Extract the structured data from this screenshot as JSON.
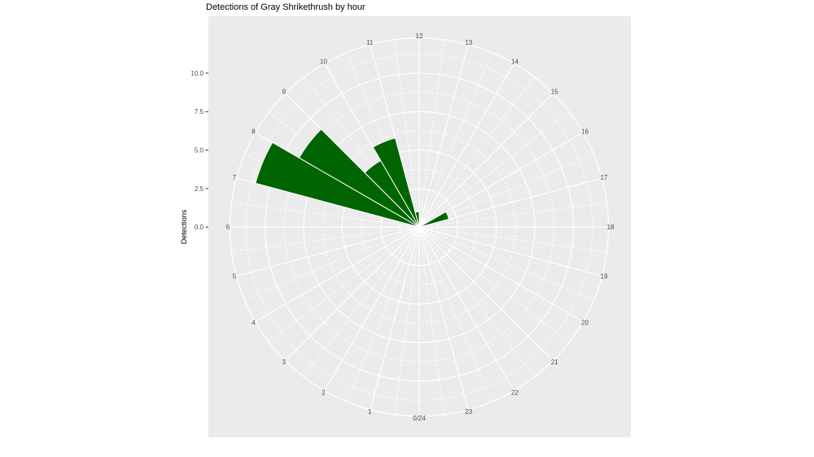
{
  "figure": {
    "title": "Detections of Gray Shrikethrush by hour",
    "y_axis_title": "Detections"
  },
  "colors": {
    "panel_background": "#ebebeb",
    "gridline": "#ffffff",
    "bar_fill": "#006400",
    "bar_border": "#ffffff",
    "axis_text": "#4d4d4d",
    "title_text": "#000000",
    "tick_mark": "#333333"
  },
  "chart_data": {
    "type": "bar",
    "coordinate_system": "polar",
    "title": "Detections of Gray Shrikethrush by hour",
    "xlabel": "",
    "ylabel": "Detections",
    "theta_labels": [
      "0/24",
      "1",
      "2",
      "3",
      "4",
      "5",
      "6",
      "7",
      "8",
      "9",
      "10",
      "11",
      "12",
      "13",
      "14",
      "15",
      "16",
      "17",
      "18",
      "19",
      "20",
      "21",
      "22",
      "23"
    ],
    "hour_bins": [
      0,
      1,
      2,
      3,
      4,
      5,
      6,
      7,
      8,
      9,
      10,
      11,
      12,
      13,
      14,
      15,
      16,
      17,
      18,
      19,
      20,
      21,
      22,
      23
    ],
    "values": [
      0,
      0,
      0,
      0,
      0,
      0,
      0,
      11,
      9,
      5,
      6,
      1,
      0,
      0,
      0,
      0,
      2,
      0,
      0,
      0,
      0,
      0,
      0,
      0
    ],
    "r_tick_labels": [
      "0.0",
      "2.5",
      "5.0",
      "7.5",
      "10.0"
    ],
    "r_tick_values": [
      0,
      2.5,
      5.0,
      7.5,
      10.0
    ],
    "r_minor_values": [
      1.25,
      3.75,
      6.25,
      8.75,
      11.25
    ],
    "rlim": [
      0,
      12.3
    ],
    "grid": true,
    "legend": false,
    "layout_note": "24-hour clock rose chart: midnight 0/24 at bottom, noon 12 at top, hours increase clockwise; each bar spans one hour starting at its labeled hour"
  }
}
